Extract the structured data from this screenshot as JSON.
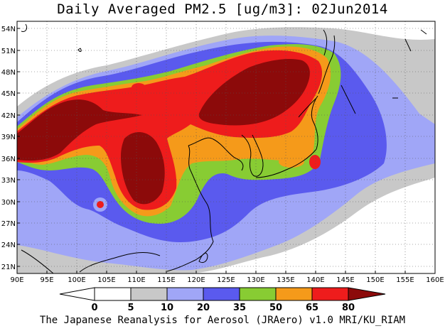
{
  "title": "Daily Averaged PM2.5 [ug/m3]: 02Jun2014",
  "footer": "The Japanese Reanalysis for Aerosol (JRAero) v1.0 MRI/KU_RIAM",
  "map": {
    "lon_range": [
      90,
      160
    ],
    "lat_range": [
      20,
      55
    ],
    "lon_ticks": [
      "90E",
      "95E",
      "100E",
      "105E",
      "110E",
      "115E",
      "120E",
      "125E",
      "130E",
      "135E",
      "140E",
      "145E",
      "150E",
      "155E",
      "160E"
    ],
    "lat_ticks": [
      "54N",
      "51N",
      "48N",
      "45N",
      "42N",
      "39N",
      "36N",
      "33N",
      "30N",
      "27N",
      "24N",
      "21N"
    ],
    "gridlines": "dotted"
  },
  "colorbar": {
    "levels": [
      "0",
      "5",
      "10",
      "20",
      "35",
      "50",
      "65",
      "80"
    ],
    "colors": [
      "#ffffff",
      "#c8c8c8",
      "#a0a6f7",
      "#5a5aee",
      "#88cc33",
      "#f59a1a",
      "#ee1c1c",
      "#8c0a0a"
    ]
  }
}
